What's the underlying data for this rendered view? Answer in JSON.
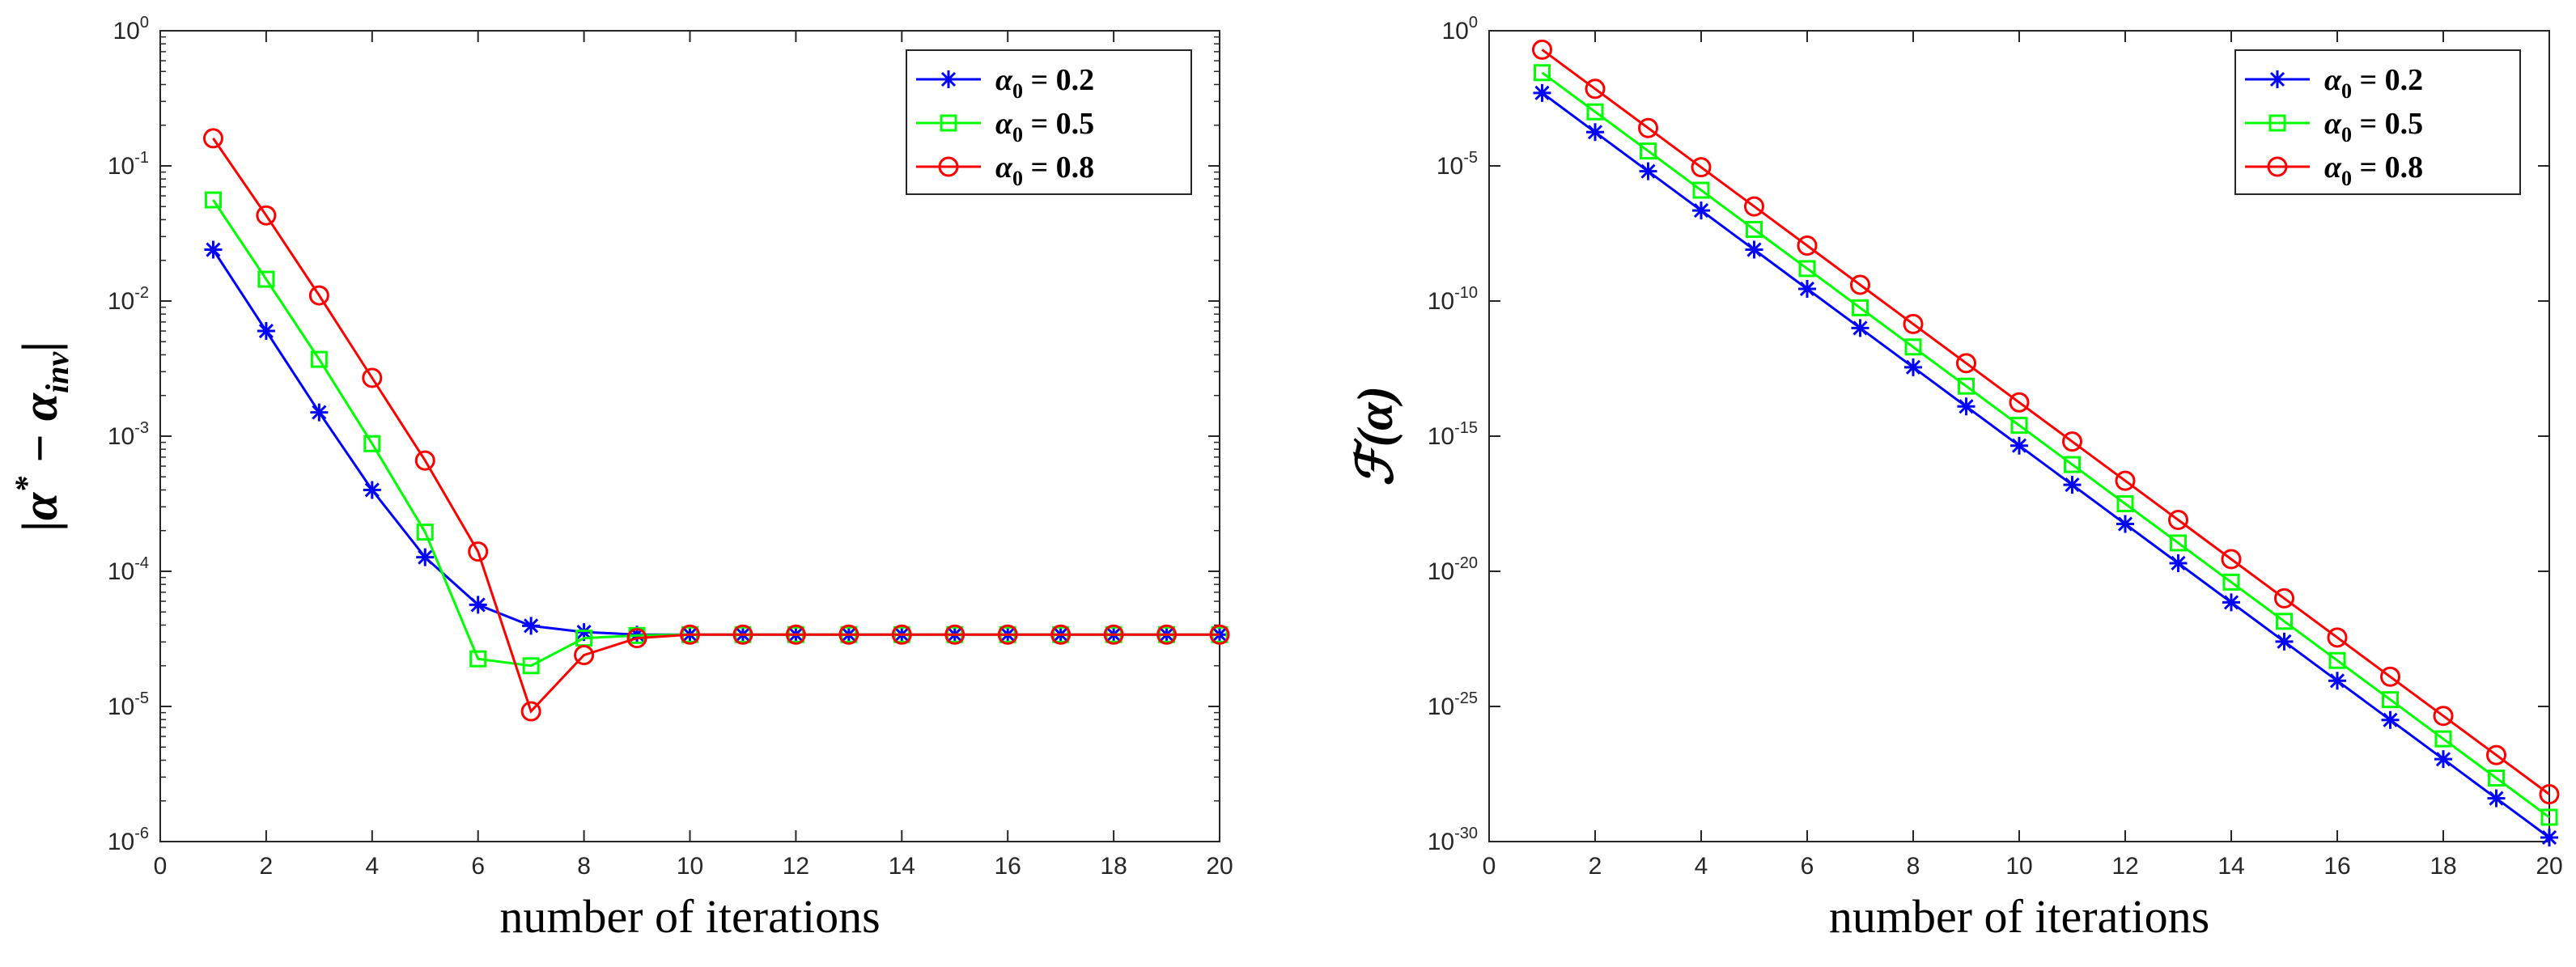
{
  "chart_data": [
    {
      "type": "line",
      "title": "",
      "xlabel": "number of iterations",
      "ylabel": "|α* − α_inv|",
      "ylabel_parts": {
        "main": "|α",
        "sup": "*",
        "mid": " − α",
        "sub": "inv",
        "end": "|"
      },
      "yscale": "log",
      "xlim": [
        0,
        20
      ],
      "ylim_exp": [
        -6,
        0
      ],
      "x_ticks": [
        0,
        2,
        4,
        6,
        8,
        10,
        12,
        14,
        16,
        18,
        20
      ],
      "y_ticks": [
        {
          "base": "10",
          "exp": "0"
        },
        {
          "base": "10",
          "exp": "-1"
        },
        {
          "base": "10",
          "exp": "-2"
        },
        {
          "base": "10",
          "exp": "-3"
        },
        {
          "base": "10",
          "exp": "-4"
        },
        {
          "base": "10",
          "exp": "-5"
        },
        {
          "base": "10",
          "exp": "-6"
        }
      ],
      "y_tick_exps": [
        0,
        -1,
        -2,
        -3,
        -4,
        -5,
        -6
      ],
      "legend_position": "top-right",
      "x": [
        1,
        2,
        3,
        4,
        5,
        6,
        7,
        8,
        9,
        10,
        11,
        12,
        13,
        14,
        15,
        16,
        17,
        18,
        19,
        20
      ],
      "series": [
        {
          "name": "α₀ = 0.2",
          "label_prefix": "α",
          "label_sub": "0",
          "label_suffix": " = 0.2",
          "color": "#0000ff",
          "marker": "asterisk",
          "values": [
            0.024,
            0.006,
            0.0015,
            0.0004,
            0.000127,
            5.65e-05,
            3.95e-05,
            3.55e-05,
            3.4e-05,
            3.4e-05,
            3.4e-05,
            3.4e-05,
            3.4e-05,
            3.4e-05,
            3.4e-05,
            3.4e-05,
            3.4e-05,
            3.4e-05,
            3.4e-05,
            3.4e-05
          ]
        },
        {
          "name": "α₀ = 0.5",
          "label_prefix": "α",
          "label_sub": "0",
          "label_suffix": " = 0.5",
          "color": "#00ff00",
          "marker": "square",
          "values": [
            0.056,
            0.0145,
            0.0037,
            0.00088,
            0.000195,
            2.25e-05,
            2e-05,
            3.2e-05,
            3.35e-05,
            3.4e-05,
            3.4e-05,
            3.4e-05,
            3.4e-05,
            3.4e-05,
            3.4e-05,
            3.4e-05,
            3.4e-05,
            3.4e-05,
            3.4e-05,
            3.4e-05
          ]
        },
        {
          "name": "α₀ = 0.8",
          "label_prefix": "α",
          "label_sub": "0",
          "label_suffix": " = 0.8",
          "color": "#ff0000",
          "marker": "circle",
          "values": [
            0.16,
            0.043,
            0.011,
            0.0027,
            0.00066,
            0.00014,
            9.2e-06,
            2.4e-05,
            3.2e-05,
            3.4e-05,
            3.4e-05,
            3.4e-05,
            3.4e-05,
            3.4e-05,
            3.4e-05,
            3.4e-05,
            3.4e-05,
            3.4e-05,
            3.4e-05,
            3.4e-05
          ]
        }
      ]
    },
    {
      "type": "line",
      "title": "",
      "xlabel": "number of iterations",
      "ylabel": "F(α)",
      "ylabel_parts": {
        "main": "ℱ(α)"
      },
      "yscale": "log",
      "xlim": [
        0,
        20
      ],
      "ylim_exp": [
        -30,
        0
      ],
      "x_ticks": [
        0,
        2,
        4,
        6,
        8,
        10,
        12,
        14,
        16,
        18,
        20
      ],
      "y_ticks": [
        {
          "base": "10",
          "exp": "0"
        },
        {
          "base": "10",
          "exp": "-5"
        },
        {
          "base": "10",
          "exp": "-10"
        },
        {
          "base": "10",
          "exp": "-15"
        },
        {
          "base": "10",
          "exp": "-20"
        },
        {
          "base": "10",
          "exp": "-25"
        },
        {
          "base": "10",
          "exp": "-30"
        }
      ],
      "y_tick_exps": [
        0,
        -5,
        -10,
        -15,
        -20,
        -25,
        -30
      ],
      "legend_position": "top-right",
      "x": [
        1,
        2,
        3,
        4,
        5,
        6,
        7,
        8,
        9,
        10,
        11,
        12,
        13,
        14,
        15,
        16,
        17,
        18,
        19,
        20
      ],
      "series": [
        {
          "name": "α₀ = 0.2",
          "label_prefix": "α",
          "label_sub": "0",
          "label_suffix": " = 0.2",
          "color": "#0000ff",
          "marker": "asterisk",
          "log10_values": [
            -2.3,
            -3.75,
            -5.2,
            -6.65,
            -8.1,
            -9.55,
            -11.0,
            -12.45,
            -13.9,
            -15.35,
            -16.8,
            -18.25,
            -19.7,
            -21.15,
            -22.6,
            -24.05,
            -25.5,
            -26.95,
            -28.4,
            -29.85
          ]
        },
        {
          "name": "α₀ = 0.5",
          "label_prefix": "α",
          "label_sub": "0",
          "label_suffix": " = 0.5",
          "color": "#00ff00",
          "marker": "square",
          "log10_values": [
            -1.55,
            -3.0,
            -4.45,
            -5.9,
            -7.35,
            -8.8,
            -10.25,
            -11.7,
            -13.15,
            -14.6,
            -16.05,
            -17.5,
            -18.95,
            -20.4,
            -21.85,
            -23.3,
            -24.75,
            -26.2,
            -27.65,
            -29.1
          ]
        },
        {
          "name": "α₀ = 0.8",
          "label_prefix": "α",
          "label_sub": "0",
          "label_suffix": " = 0.8",
          "color": "#ff0000",
          "marker": "circle",
          "log10_values": [
            -0.7,
            -2.15,
            -3.6,
            -5.05,
            -6.5,
            -7.95,
            -9.4,
            -10.85,
            -12.3,
            -13.75,
            -15.2,
            -16.65,
            -18.1,
            -19.55,
            -21.0,
            -22.45,
            -23.9,
            -25.35,
            -26.8,
            -28.25
          ]
        }
      ]
    }
  ]
}
